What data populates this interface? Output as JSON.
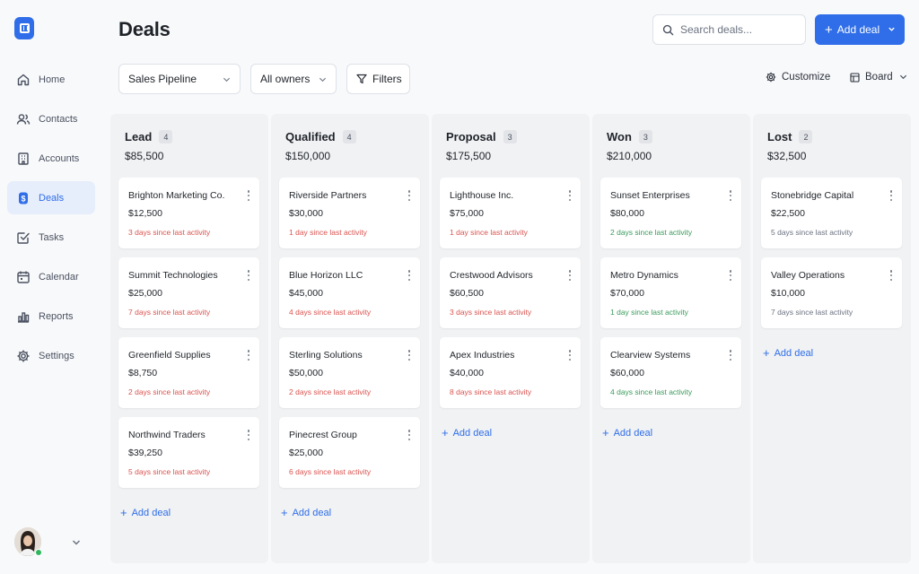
{
  "app": {
    "logo_icon": "app-logo-icon"
  },
  "sidebar": {
    "items": [
      {
        "label": "Home",
        "icon": "home-icon"
      },
      {
        "label": "Contacts",
        "icon": "users-icon"
      },
      {
        "label": "Accounts",
        "icon": "building-icon"
      },
      {
        "label": "Deals",
        "icon": "dollar-tag-icon",
        "active": true
      },
      {
        "label": "Tasks",
        "icon": "checkbox-icon"
      },
      {
        "label": "Calendar",
        "icon": "calendar-icon"
      },
      {
        "label": "Reports",
        "icon": "bar-chart-icon"
      },
      {
        "label": "Settings",
        "icon": "gear-icon"
      }
    ],
    "user_status": "online"
  },
  "header": {
    "title": "Deals",
    "search_placeholder": "Search deals...",
    "add_deal_label": "Add deal"
  },
  "toolbar": {
    "pipeline": "Sales Pipeline",
    "owners": "All owners",
    "filters_label": "Filters",
    "customize_label": "Customize",
    "view_label": "Board"
  },
  "board": {
    "add_label": "Add deal",
    "columns": [
      {
        "name": "Lead",
        "count": "4",
        "total": "$85,500",
        "cards": [
          {
            "name": "Brighton Marketing Co.",
            "value": "$12,500",
            "activity": "3 days since last activity",
            "status": "warn"
          },
          {
            "name": "Summit Technologies",
            "value": "$25,000",
            "activity": "7 days since last activity",
            "status": "warn"
          },
          {
            "name": "Greenfield Supplies",
            "value": "$8,750",
            "activity": "2 days since last activity",
            "status": "warn"
          },
          {
            "name": "Northwind Traders",
            "value": "$39,250",
            "activity": "5 days since last activity",
            "status": "warn"
          }
        ]
      },
      {
        "name": "Qualified",
        "count": "4",
        "total": "$150,000",
        "cards": [
          {
            "name": "Riverside Partners",
            "value": "$30,000",
            "activity": "1 day since last activity",
            "status": "warn"
          },
          {
            "name": "Blue Horizon LLC",
            "value": "$45,000",
            "activity": "4 days since last activity",
            "status": "warn"
          },
          {
            "name": "Sterling Solutions",
            "value": "$50,000",
            "activity": "2 days since last activity",
            "status": "warn"
          },
          {
            "name": "Pinecrest Group",
            "value": "$25,000",
            "activity": "6 days since last activity",
            "status": "warn"
          }
        ]
      },
      {
        "name": "Proposal",
        "count": "3",
        "total": "$175,500",
        "cards": [
          {
            "name": "Lighthouse Inc.",
            "value": "$75,000",
            "activity": "1 day since last activity",
            "status": "warn"
          },
          {
            "name": "Crestwood Advisors",
            "value": "$60,500",
            "activity": "3 days since last activity",
            "status": "warn"
          },
          {
            "name": "Apex Industries",
            "value": "$40,000",
            "activity": "8 days since last activity",
            "status": "warn"
          }
        ]
      },
      {
        "name": "Won",
        "count": "3",
        "total": "$210,000",
        "cards": [
          {
            "name": "Sunset Enterprises",
            "value": "$80,000",
            "activity": "2 days since last activity",
            "status": "ok"
          },
          {
            "name": "Metro Dynamics",
            "value": "$70,000",
            "activity": "1 day since last activity",
            "status": "ok"
          },
          {
            "name": "Clearview Systems",
            "value": "$60,000",
            "activity": "4 days since last activity",
            "status": "ok"
          }
        ]
      },
      {
        "name": "Lost",
        "count": "2",
        "total": "$32,500",
        "cards": [
          {
            "name": "Stonebridge Capital",
            "value": "$22,500",
            "activity": "5 days since last activity",
            "status": "muted"
          },
          {
            "name": "Valley Operations",
            "value": "$10,000",
            "activity": "7 days since last activity",
            "status": "muted"
          }
        ]
      }
    ]
  },
  "colors": {
    "accent": "#2f6ee8",
    "warn": "#d9534f",
    "ok": "#3a9b5c",
    "muted": "#6b7280"
  }
}
